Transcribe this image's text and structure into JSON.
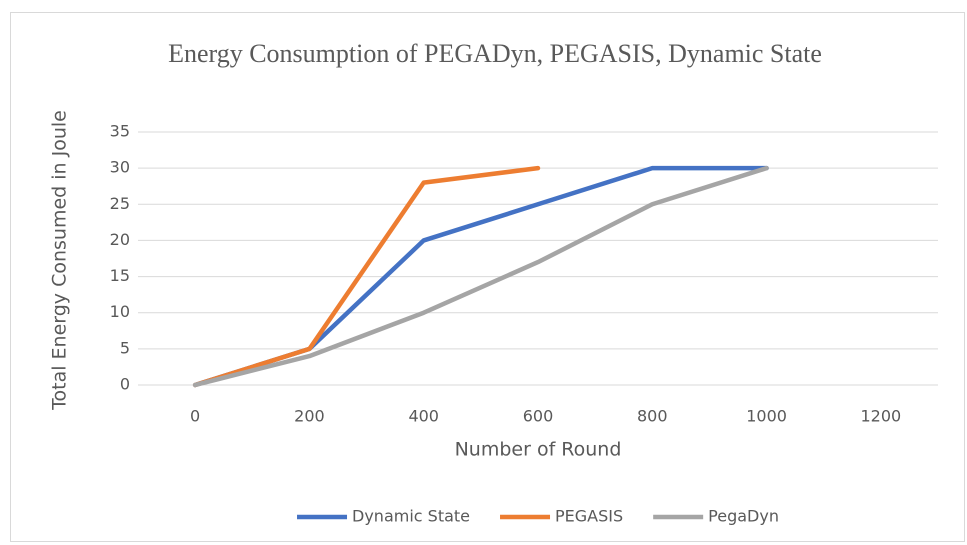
{
  "chart_data": {
    "type": "line",
    "title": "Energy Consumption of PEGADyn, PEGASIS, Dynamic State",
    "x_label": "Number of Round",
    "y_label": "Total Energy Consumed in Joule",
    "categories": [
      0,
      200,
      400,
      600,
      800,
      1000,
      1200
    ],
    "series": [
      {
        "name": "Dynamic State",
        "color": "#4472c4",
        "values": [
          0,
          5,
          20,
          25,
          30,
          30,
          null
        ]
      },
      {
        "name": "PEGASIS",
        "color": "#ed7d31",
        "values": [
          0,
          5,
          28,
          30,
          null,
          null,
          null
        ]
      },
      {
        "name": "PegaDyn",
        "color": "#a5a5a5",
        "values": [
          0,
          4,
          10,
          17,
          25,
          30,
          null
        ]
      }
    ],
    "ylim": [
      0,
      35
    ],
    "yticks": [
      0,
      5,
      10,
      15,
      20,
      25,
      30,
      35
    ],
    "grid": true,
    "legend": "bottom"
  }
}
